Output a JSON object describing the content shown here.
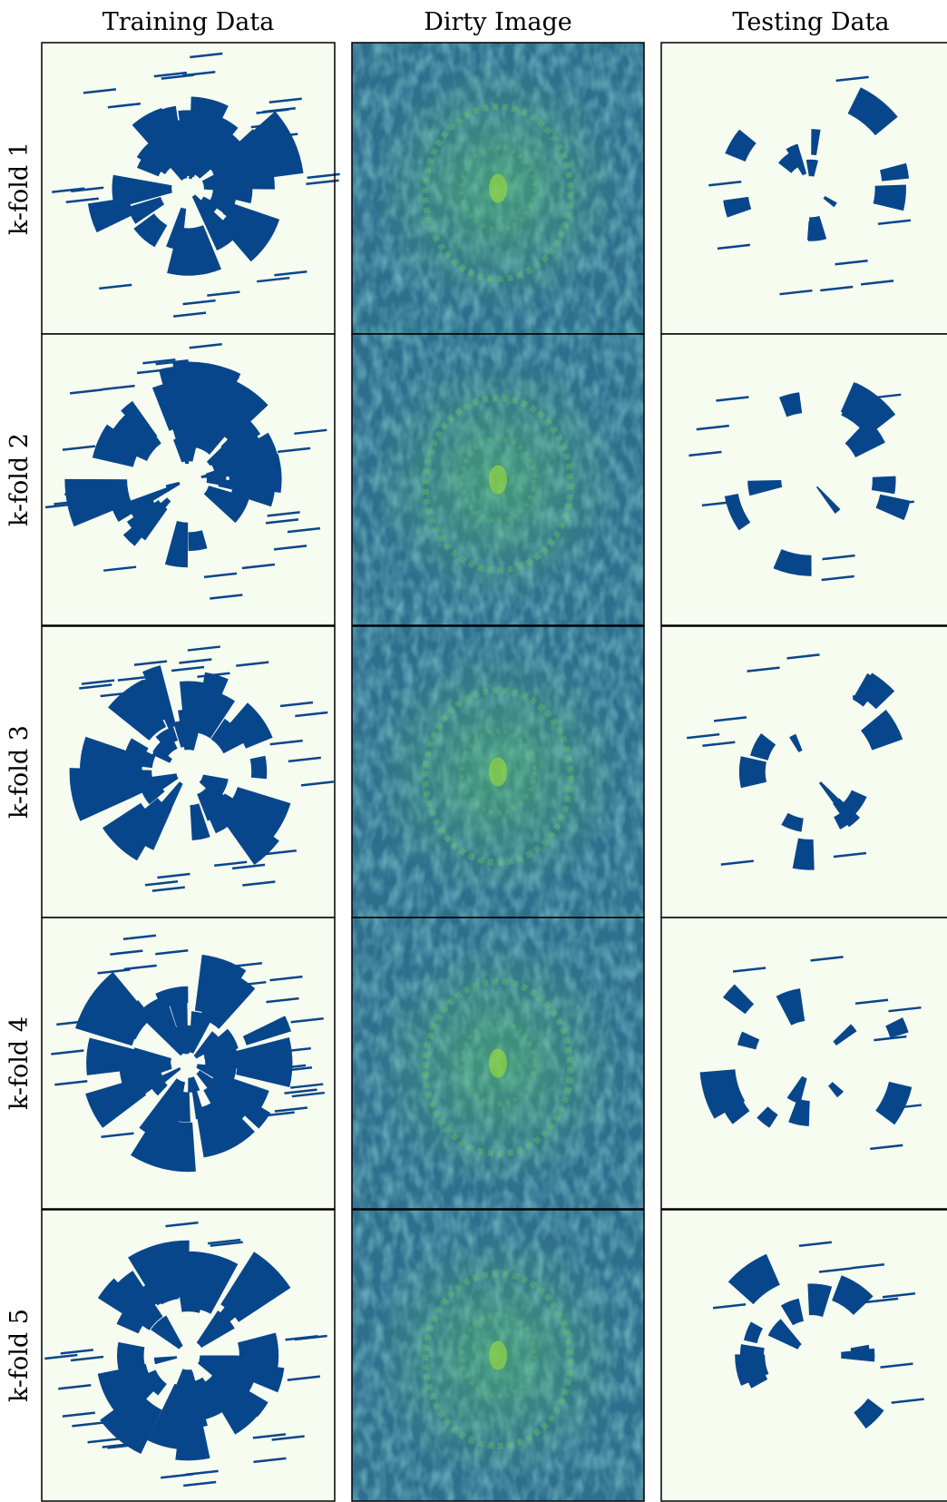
{
  "columns": [
    "Training Data",
    "Dirty Image",
    "Testing Data"
  ],
  "rows": [
    "k-fold 1",
    "k-fold 2",
    "k-fold 3",
    "k-fold 4",
    "k-fold 5"
  ]
}
